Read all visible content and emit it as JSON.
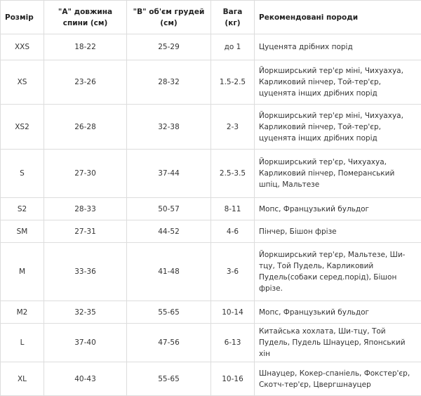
{
  "table": {
    "header": [
      "Розмір",
      "\"А\" довжина спини (см)",
      "\"В\" об'єм грудей (см)",
      "Вага (кг)",
      "Рекомендовані породи"
    ],
    "rows": [
      [
        "XXS",
        "18-22",
        "25-29",
        "до 1",
        "Цуценята дрібних порід"
      ],
      [
        "XS",
        "23-26",
        "28-32",
        "1.5-2.5",
        "Йоркширський тер'єр міні, Чихуахуа, Карликовий пінчер, Той-тер'єр, цуценята інщих дрібних порід"
      ],
      [
        "XS2",
        "26-28",
        "32-38",
        "2-3",
        "Йоркширський тер'єр міні, Чихуахуа, Карликовий пінчер, Той-тер'єр, цуценята інщих дрібних порід"
      ],
      [
        "S",
        "27-30",
        "37-44",
        "2.5-3.5",
        "Йоркширський тер'єр, Чихуахуа, Карликовий пінчер, Померанський шпіц, Мальтезе"
      ],
      [
        "S2",
        "28-33",
        "50-57",
        "8-11",
        "Мопс, Французький бульдог"
      ],
      [
        "SM",
        "27-31",
        "44-52",
        "4-6",
        "Пінчер, Бішон фрізе"
      ],
      [
        "M",
        "33-36",
        "41-48",
        "3-6",
        "Йоркширський тер'єр, Мальтезе, Ши-тцу, Той Пудель, Карликовий Пудель(собаки серед.порід), Бішон фрізе."
      ],
      [
        "M2",
        "32-35",
        "55-65",
        "10-14",
        "Мопс, Французький бульдог"
      ],
      [
        "L",
        "37-40",
        "47-56",
        "6-13",
        "Китайська хохлата, Ши-тцу, Той Пудель, Пудель Шнауцер, Японський хін"
      ],
      [
        "XL",
        "40-43",
        "55-65",
        "10-16",
        "Шнауцер, Кокер-спаніель, Фокстер'єр, Скотч-тер'єр, Цвергшнауцер"
      ]
    ]
  }
}
